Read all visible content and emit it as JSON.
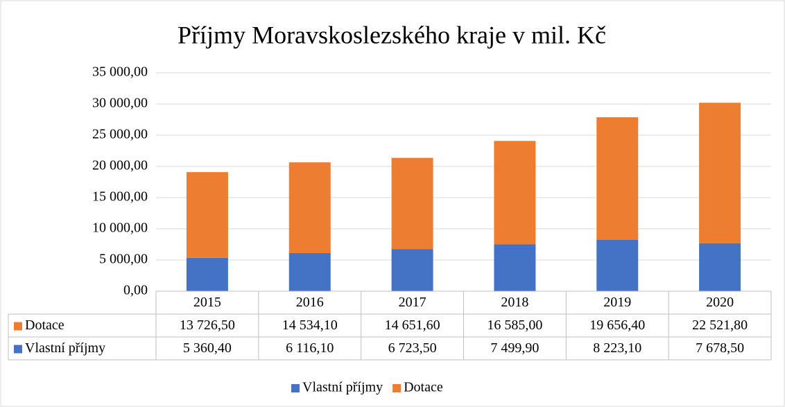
{
  "chart_data": {
    "type": "bar",
    "stacked": true,
    "title": "Příjmy Moravskoslezského kraje v mil. Kč",
    "categories": [
      "2015",
      "2016",
      "2017",
      "2018",
      "2019",
      "2020"
    ],
    "series": [
      {
        "name": "Vlastní příjmy",
        "color": "#4472c4",
        "values": [
          5360.4,
          6116.1,
          6723.5,
          7499.9,
          8223.1,
          7678.5
        ],
        "value_labels": [
          "5 360,40",
          "6 116,10",
          "6 723,50",
          "7 499,90",
          "8 223,10",
          "7 678,50"
        ]
      },
      {
        "name": "Dotace",
        "color": "#ed7d31",
        "values": [
          13726.5,
          14534.1,
          14651.6,
          16585.0,
          19656.4,
          22521.8
        ],
        "value_labels": [
          "13 726,50",
          "14 534,10",
          "14 651,60",
          "16 585,00",
          "19 656,40",
          "22 521,80"
        ]
      }
    ],
    "ylim": [
      0,
      35000
    ],
    "yticks": [
      {
        "value": 0,
        "label": "0,00"
      },
      {
        "value": 5000,
        "label": "5 000,00"
      },
      {
        "value": 10000,
        "label": "10 000,00"
      },
      {
        "value": 15000,
        "label": "15 000,00"
      },
      {
        "value": 20000,
        "label": "20 000,00"
      },
      {
        "value": 25000,
        "label": "25 000,00"
      },
      {
        "value": 30000,
        "label": "30 000,00"
      },
      {
        "value": 35000,
        "label": "35 000,00"
      }
    ],
    "grid": true,
    "data_table": true,
    "legend": "bottom"
  }
}
